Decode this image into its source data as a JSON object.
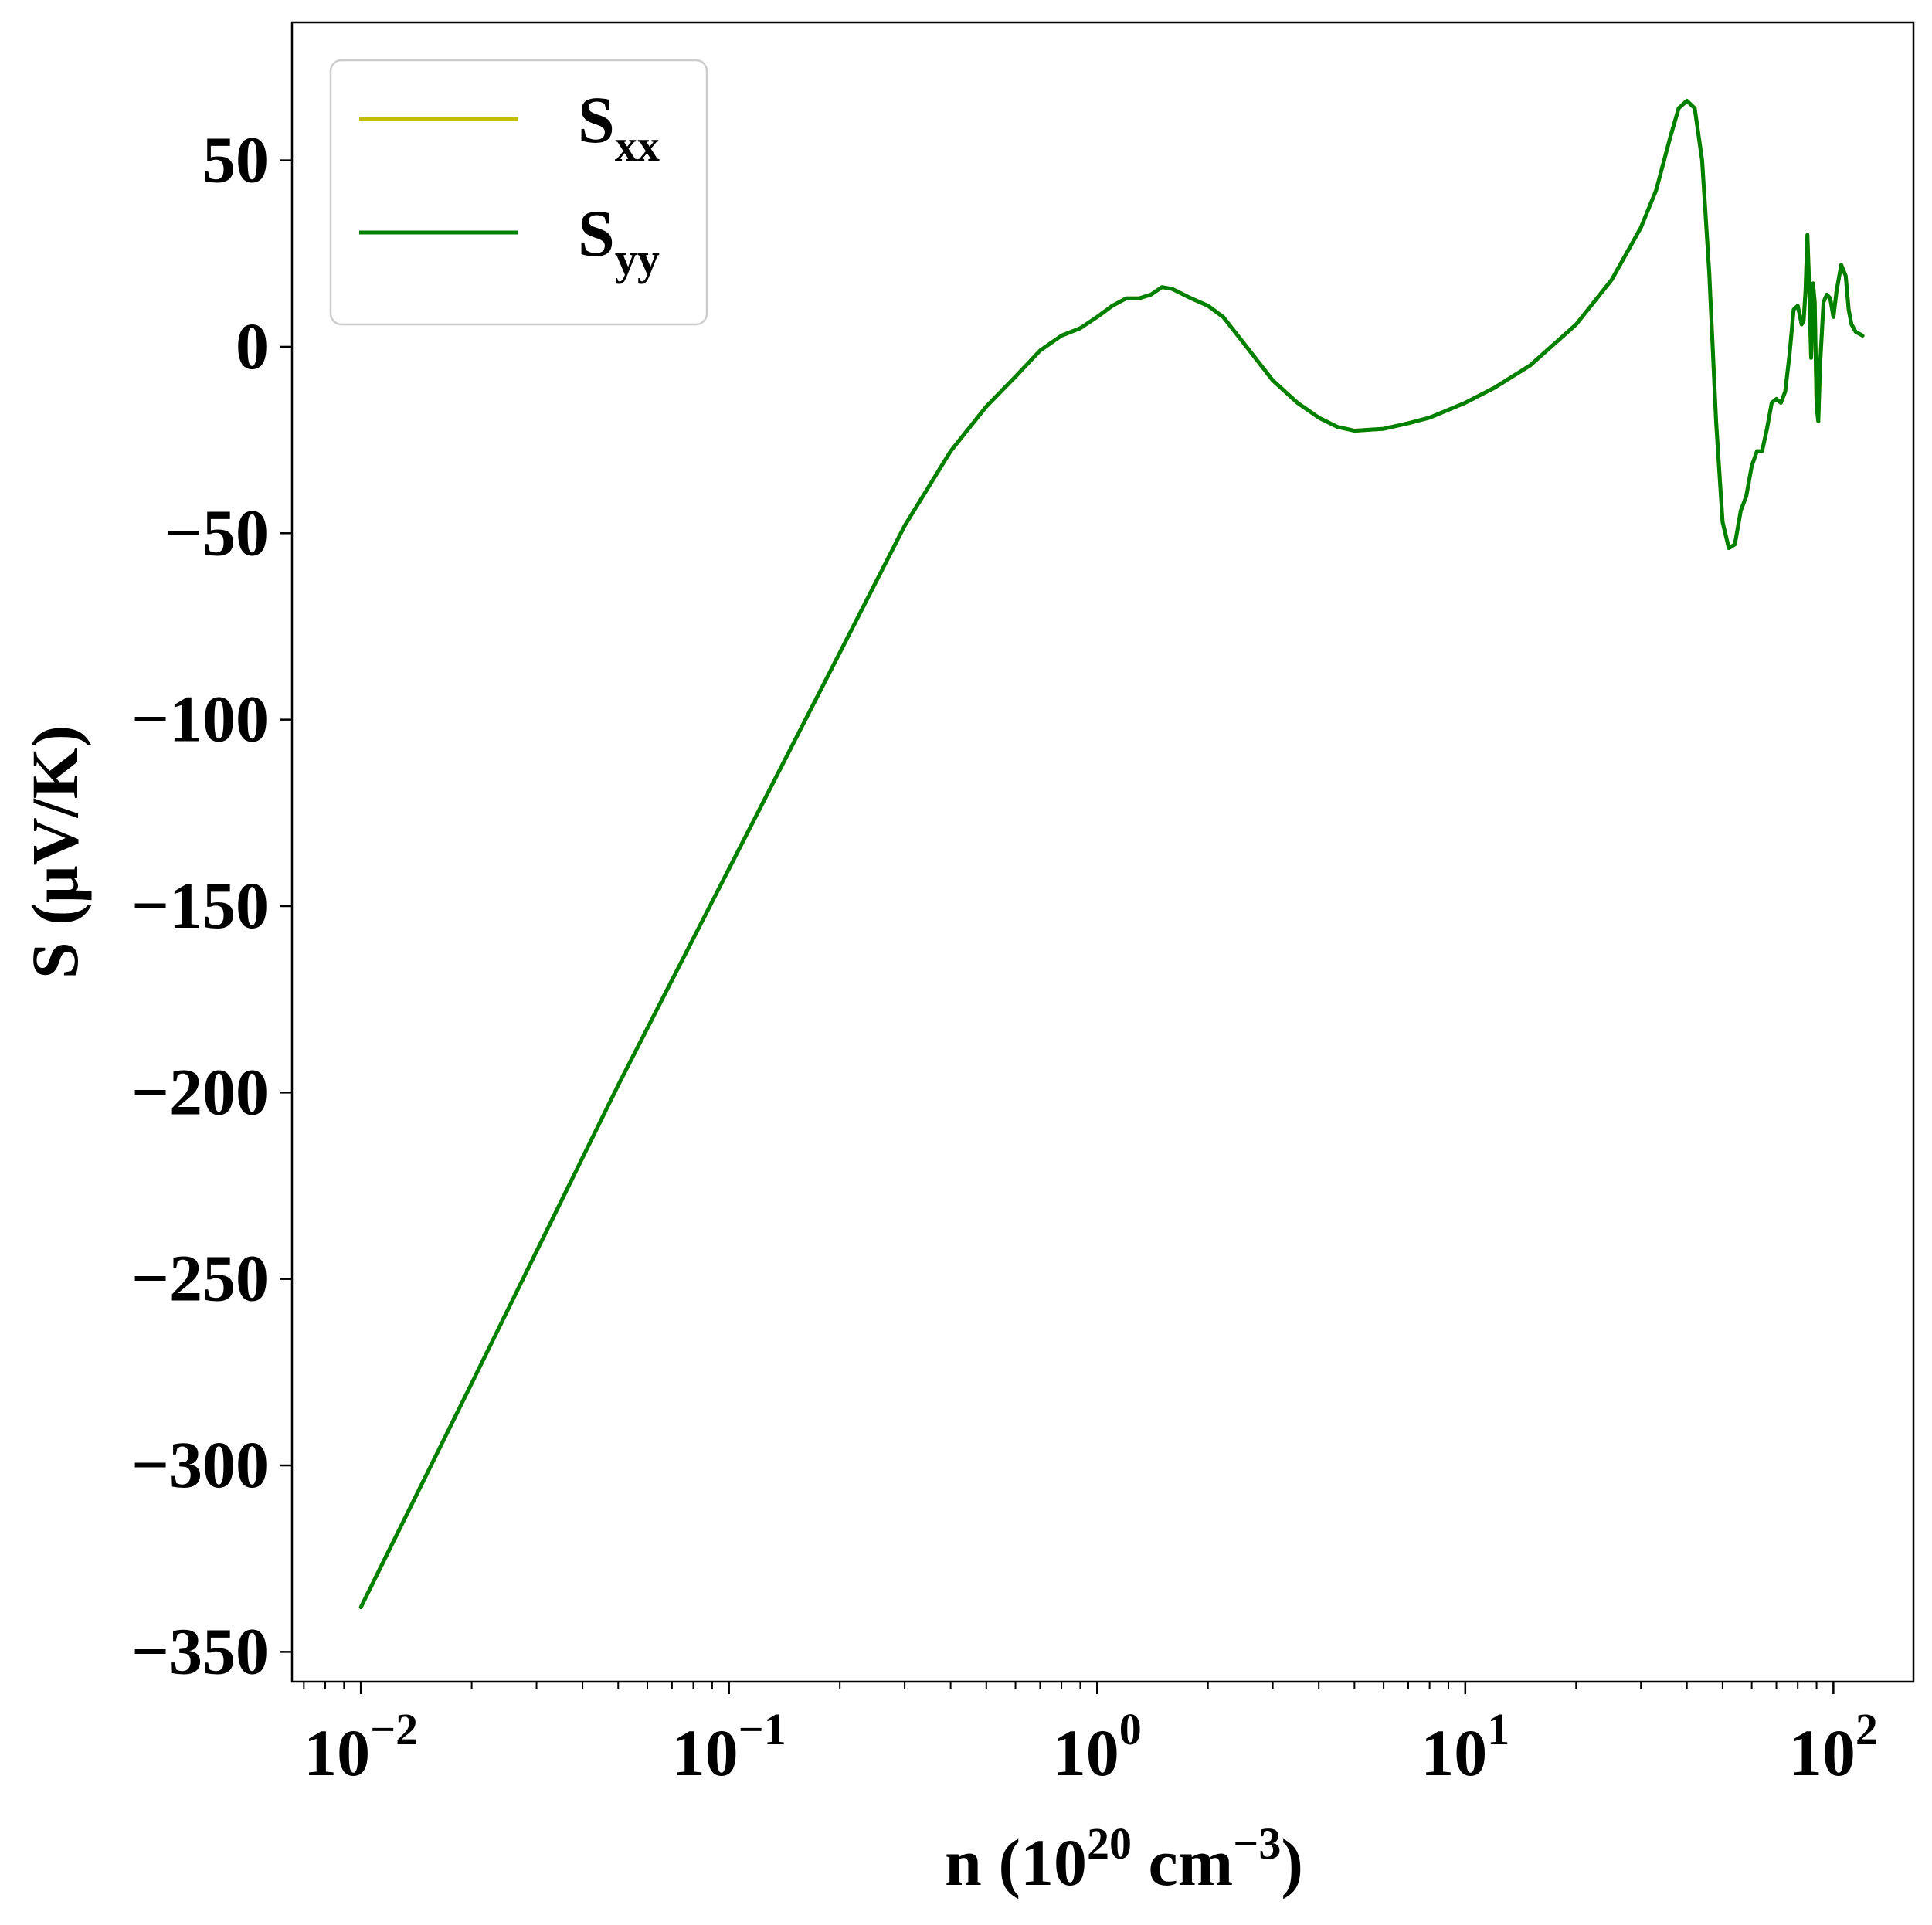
{
  "chart_data": {
    "type": "line",
    "title": "",
    "xlabel": {
      "prefix": "n (10",
      "exp1": "20",
      "mid": " cm",
      "exp2": "−3",
      "suffix": ")"
    },
    "ylabel": "S (μV/K)",
    "xscale": "log",
    "xlim": [
      0.0065,
      165
    ],
    "ylim": [
      -358,
      87
    ],
    "grid": false,
    "legend_position": "top-left",
    "x_ticks": [
      {
        "value": 0.01,
        "base": "10",
        "exp": "−2"
      },
      {
        "value": 0.1,
        "base": "10",
        "exp": "−1"
      },
      {
        "value": 1,
        "base": "10",
        "exp": "0"
      },
      {
        "value": 10,
        "base": "10",
        "exp": "1"
      },
      {
        "value": 100,
        "base": "10",
        "exp": "2"
      }
    ],
    "y_ticks": [
      {
        "value": 50,
        "label": "50"
      },
      {
        "value": 0,
        "label": "0"
      },
      {
        "value": -50,
        "label": "−50"
      },
      {
        "value": -100,
        "label": "−100"
      },
      {
        "value": -150,
        "label": "−150"
      },
      {
        "value": -200,
        "label": "−200"
      },
      {
        "value": -250,
        "label": "−250"
      },
      {
        "value": -300,
        "label": "−300"
      },
      {
        "value": -350,
        "label": "−350"
      }
    ],
    "series": [
      {
        "name": "S",
        "sub": "xx",
        "color": "#bfbf00",
        "points": [
          [
            0.01,
            -338
          ],
          [
            0.02,
            -278
          ],
          [
            0.05,
            -198
          ],
          [
            0.1,
            -140
          ],
          [
            0.2,
            -82
          ],
          [
            0.3,
            -48
          ],
          [
            0.4,
            -28
          ],
          [
            0.5,
            -16
          ],
          [
            0.6,
            -8
          ],
          [
            0.7,
            -1
          ],
          [
            0.8,
            3
          ],
          [
            0.9,
            5
          ],
          [
            1.0,
            8
          ],
          [
            1.1,
            11
          ],
          [
            1.2,
            13
          ],
          [
            1.3,
            13
          ],
          [
            1.4,
            14
          ],
          [
            1.5,
            16
          ],
          [
            1.6,
            15.5
          ],
          [
            1.8,
            13
          ],
          [
            2.0,
            11
          ],
          [
            2.2,
            8
          ],
          [
            2.5,
            1
          ],
          [
            3.0,
            -9
          ],
          [
            3.5,
            -15
          ],
          [
            4.0,
            -19
          ],
          [
            4.5,
            -21.5
          ],
          [
            5.0,
            -22.5
          ],
          [
            6.0,
            -22
          ],
          [
            7.0,
            -20.5
          ],
          [
            8.0,
            -19
          ],
          [
            10,
            -15
          ],
          [
            12,
            -11
          ],
          [
            15,
            -5
          ],
          [
            20,
            6
          ],
          [
            25,
            18
          ],
          [
            30,
            32
          ],
          [
            33,
            42
          ],
          [
            36,
            56
          ],
          [
            38,
            64
          ],
          [
            40,
            66
          ],
          [
            42,
            64
          ],
          [
            44,
            50
          ],
          [
            46,
            20
          ],
          [
            48,
            -20
          ],
          [
            50,
            -47
          ],
          [
            52,
            -54
          ],
          [
            54,
            -53
          ],
          [
            56,
            -44
          ],
          [
            58,
            -40
          ],
          [
            60,
            -32
          ],
          [
            62,
            -28
          ],
          [
            64,
            -28
          ],
          [
            66,
            -22
          ],
          [
            68,
            -15
          ],
          [
            70,
            -14
          ],
          [
            72,
            -15
          ],
          [
            74,
            -12
          ],
          [
            76,
            -2
          ],
          [
            78,
            10
          ],
          [
            80,
            11
          ],
          [
            82,
            6
          ],
          [
            83,
            7
          ],
          [
            84,
            15
          ],
          [
            85,
            30
          ],
          [
            86,
            16
          ],
          [
            87,
            -3
          ],
          [
            88,
            17
          ],
          [
            89,
            12
          ],
          [
            90,
            -16
          ],
          [
            91,
            -20
          ],
          [
            92,
            -5
          ],
          [
            94,
            12
          ],
          [
            96,
            14
          ],
          [
            98,
            13
          ],
          [
            100,
            8
          ],
          [
            102,
            15
          ],
          [
            105,
            22
          ],
          [
            108,
            19
          ],
          [
            110,
            10
          ],
          [
            112,
            6
          ],
          [
            115,
            4
          ],
          [
            120,
            3
          ]
        ]
      },
      {
        "name": "S",
        "sub": "yy",
        "color": "#008000",
        "points": [
          [
            0.01,
            -338
          ],
          [
            0.02,
            -278
          ],
          [
            0.05,
            -198
          ],
          [
            0.1,
            -140
          ],
          [
            0.2,
            -82
          ],
          [
            0.3,
            -48
          ],
          [
            0.4,
            -28
          ],
          [
            0.5,
            -16
          ],
          [
            0.6,
            -8
          ],
          [
            0.7,
            -1
          ],
          [
            0.8,
            3
          ],
          [
            0.9,
            5
          ],
          [
            1.0,
            8
          ],
          [
            1.1,
            11
          ],
          [
            1.2,
            13
          ],
          [
            1.3,
            13
          ],
          [
            1.4,
            14
          ],
          [
            1.5,
            16
          ],
          [
            1.6,
            15.5
          ],
          [
            1.8,
            13
          ],
          [
            2.0,
            11
          ],
          [
            2.2,
            8
          ],
          [
            2.5,
            1
          ],
          [
            3.0,
            -9
          ],
          [
            3.5,
            -15
          ],
          [
            4.0,
            -19
          ],
          [
            4.5,
            -21.5
          ],
          [
            5.0,
            -22.5
          ],
          [
            6.0,
            -22
          ],
          [
            7.0,
            -20.5
          ],
          [
            8.0,
            -19
          ],
          [
            10,
            -15
          ],
          [
            12,
            -11
          ],
          [
            15,
            -5
          ],
          [
            20,
            6
          ],
          [
            25,
            18
          ],
          [
            30,
            32
          ],
          [
            33,
            42
          ],
          [
            36,
            56
          ],
          [
            38,
            64
          ],
          [
            40,
            66
          ],
          [
            42,
            64
          ],
          [
            44,
            50
          ],
          [
            46,
            20
          ],
          [
            48,
            -20
          ],
          [
            50,
            -47
          ],
          [
            52,
            -54
          ],
          [
            54,
            -53
          ],
          [
            56,
            -44
          ],
          [
            58,
            -40
          ],
          [
            60,
            -32
          ],
          [
            62,
            -28
          ],
          [
            64,
            -28
          ],
          [
            66,
            -22
          ],
          [
            68,
            -15
          ],
          [
            70,
            -14
          ],
          [
            72,
            -15
          ],
          [
            74,
            -12
          ],
          [
            76,
            -2
          ],
          [
            78,
            10
          ],
          [
            80,
            11
          ],
          [
            82,
            6
          ],
          [
            83,
            7
          ],
          [
            84,
            15
          ],
          [
            85,
            30
          ],
          [
            86,
            16
          ],
          [
            87,
            -3
          ],
          [
            88,
            17
          ],
          [
            89,
            12
          ],
          [
            90,
            -16
          ],
          [
            91,
            -20
          ],
          [
            92,
            -5
          ],
          [
            94,
            12
          ],
          [
            96,
            14
          ],
          [
            98,
            13
          ],
          [
            100,
            8
          ],
          [
            102,
            15
          ],
          [
            105,
            22
          ],
          [
            108,
            19
          ],
          [
            110,
            10
          ],
          [
            112,
            6
          ],
          [
            115,
            4
          ],
          [
            120,
            3
          ]
        ]
      }
    ]
  }
}
